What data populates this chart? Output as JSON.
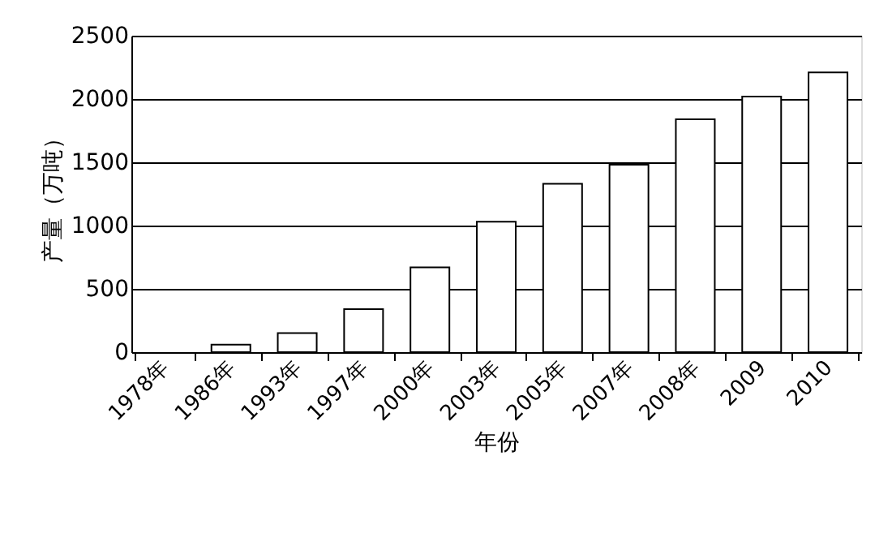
{
  "chart_data": {
    "type": "bar",
    "xlabel": "年份",
    "ylabel": "产量（万吨）",
    "categories": [
      "1978年",
      "1986年",
      "1993年",
      "1997年",
      "2000年",
      "2003年",
      "2005年",
      "2007年",
      "2008年",
      "2009",
      "2010"
    ],
    "values": [
      null,
      60,
      150,
      340,
      670,
      1030,
      1330,
      1480,
      1840,
      2020,
      2210
    ],
    "color": "#ffffff",
    "ylim": [
      0,
      2500
    ],
    "yticks": [
      0,
      500,
      1000,
      1500,
      2000,
      2500
    ],
    "grid": "y"
  }
}
